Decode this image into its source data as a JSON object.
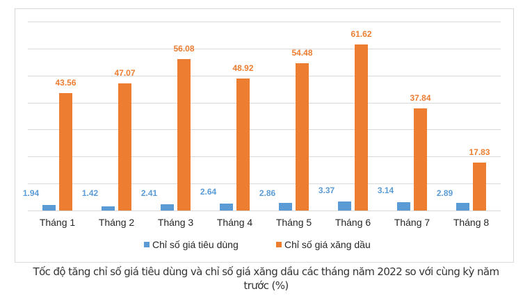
{
  "chart_data": {
    "type": "bar",
    "title": "",
    "categories": [
      "Tháng 1",
      "Tháng 2",
      "Tháng 3",
      "Tháng 4",
      "Tháng 5",
      "Tháng 6",
      "Tháng 7",
      "Tháng 8"
    ],
    "series": [
      {
        "name": "Chỉ số giá tiêu dùng",
        "color": "#5b9bd5",
        "values": [
          1.94,
          1.42,
          2.41,
          2.64,
          2.86,
          3.37,
          3.14,
          2.89
        ]
      },
      {
        "name": "Chỉ số giá xăng dầu",
        "color": "#ed7d31",
        "values": [
          43.56,
          47.07,
          56.08,
          48.92,
          54.48,
          61.62,
          37.84,
          17.83
        ]
      }
    ],
    "xlabel": "",
    "ylabel": "",
    "ylim": [
      0,
      70
    ],
    "grid": true,
    "gridlines": 8,
    "legend_position": "bottom",
    "y_axis_labels_visible": false,
    "data_labels": true
  },
  "legend": {
    "items": [
      {
        "label": "Chỉ số giá tiêu dùng",
        "color": "#5b9bd5"
      },
      {
        "label": "Chỉ số giá xăng dầu",
        "color": "#ed7d31"
      }
    ]
  },
  "caption": {
    "line1": "Tốc độ tăng chỉ số giá tiêu dùng và chỉ số giá xăng dầu các tháng năm 2022 so với cùng kỳ năm",
    "line2": "trước (%)"
  }
}
